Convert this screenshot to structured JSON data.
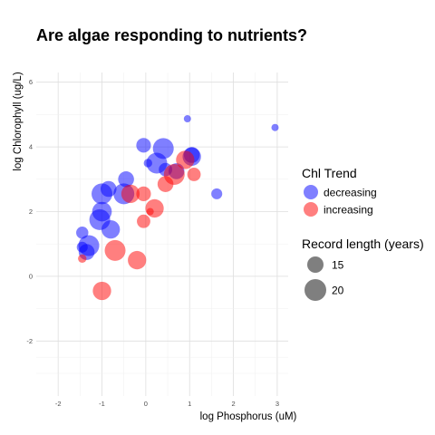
{
  "chart_data": {
    "type": "scatter",
    "title": "Are algae responding to nutrients?",
    "xlabel": "log Phosphorus (uM)",
    "ylabel": "log Chlorophyll (ug/L)",
    "xlim": [
      -2.5,
      3.25
    ],
    "ylim": [
      -3.7,
      6.3
    ],
    "xticks": [
      -2,
      -1,
      0,
      1,
      2,
      3
    ],
    "yticks": [
      -2,
      0,
      2,
      4,
      6
    ],
    "grid": true,
    "legend_position": "right",
    "color_legend": {
      "title": "Chl Trend",
      "entries": [
        {
          "label": "decreasing",
          "color": "#0000ff"
        },
        {
          "label": "increasing",
          "color": "#ff0000"
        }
      ]
    },
    "size_legend": {
      "title": "Record length (years)",
      "entries": [
        {
          "label": "15",
          "value": 15
        },
        {
          "label": "20",
          "value": 20
        }
      ]
    },
    "series": [
      {
        "name": "decreasing",
        "color": "#0000ff",
        "points": [
          {
            "x": 0.95,
            "y": 4.87,
            "size": 9
          },
          {
            "x": 2.95,
            "y": 4.6,
            "size": 9
          },
          {
            "x": 1.62,
            "y": 2.55,
            "size": 12
          },
          {
            "x": -0.05,
            "y": 4.05,
            "size": 15
          },
          {
            "x": 0.05,
            "y": 3.5,
            "size": 10
          },
          {
            "x": 0.25,
            "y": 3.5,
            "size": 20
          },
          {
            "x": 0.4,
            "y": 3.95,
            "size": 20
          },
          {
            "x": 0.45,
            "y": 3.3,
            "size": 14
          },
          {
            "x": 0.7,
            "y": 3.25,
            "size": 16
          },
          {
            "x": 1.05,
            "y": 3.7,
            "size": 18
          },
          {
            "x": 1.05,
            "y": 3.75,
            "size": 16
          },
          {
            "x": -0.45,
            "y": 3.0,
            "size": 16
          },
          {
            "x": -0.85,
            "y": 2.7,
            "size": 16
          },
          {
            "x": -1.0,
            "y": 2.55,
            "size": 20
          },
          {
            "x": -0.5,
            "y": 2.55,
            "size": 20
          },
          {
            "x": -1.0,
            "y": 2.0,
            "size": 19
          },
          {
            "x": -1.05,
            "y": 1.75,
            "size": 20
          },
          {
            "x": -0.8,
            "y": 1.45,
            "size": 18
          },
          {
            "x": -1.45,
            "y": 1.35,
            "size": 13
          },
          {
            "x": -1.3,
            "y": 0.95,
            "size": 20
          },
          {
            "x": -1.35,
            "y": 0.75,
            "size": 16
          },
          {
            "x": -1.45,
            "y": 0.9,
            "size": 12
          }
        ]
      },
      {
        "name": "increasing",
        "color": "#ff0000",
        "points": [
          {
            "x": 0.9,
            "y": 3.6,
            "size": 18
          },
          {
            "x": 1.1,
            "y": 3.15,
            "size": 14
          },
          {
            "x": 0.65,
            "y": 3.15,
            "size": 20
          },
          {
            "x": 0.45,
            "y": 2.85,
            "size": 16
          },
          {
            "x": -0.35,
            "y": 2.55,
            "size": 18
          },
          {
            "x": -0.05,
            "y": 2.55,
            "size": 15
          },
          {
            "x": 0.2,
            "y": 2.1,
            "size": 18
          },
          {
            "x": 0.1,
            "y": 2.0,
            "size": 9
          },
          {
            "x": -0.05,
            "y": 1.7,
            "size": 14
          },
          {
            "x": -0.7,
            "y": 0.8,
            "size": 20
          },
          {
            "x": -0.2,
            "y": 0.5,
            "size": 18
          },
          {
            "x": -1.0,
            "y": -0.45,
            "size": 18
          },
          {
            "x": -1.45,
            "y": 0.55,
            "size": 10
          }
        ]
      }
    ]
  }
}
